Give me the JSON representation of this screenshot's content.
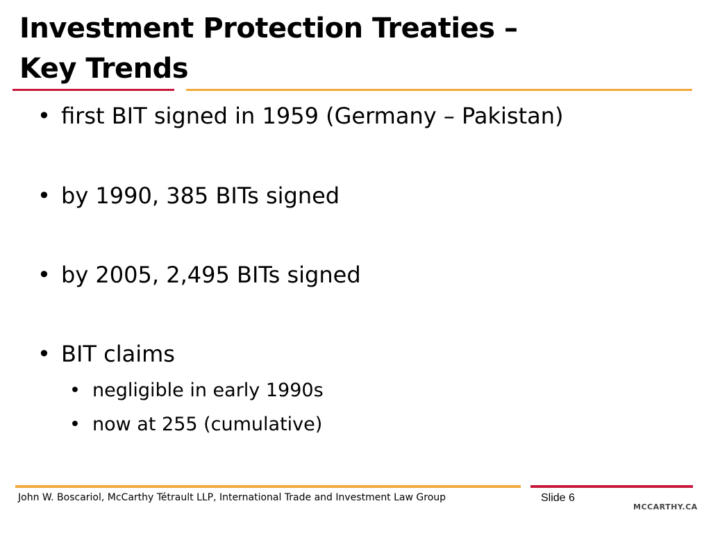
{
  "title": {
    "line1": "Investment Protection Treaties –",
    "line2": "Key Trends"
  },
  "bullets": [
    {
      "text": "first BIT signed in 1959 (Germany – Pakistan)"
    },
    {
      "text": "by 1990, 385 BITs signed"
    },
    {
      "text": "by 2005, 2,495 BITs signed"
    },
    {
      "text": "BIT claims",
      "sub": [
        {
          "text": "negligible in early 1990s"
        },
        {
          "text": "now at 255 (cumulative)"
        }
      ]
    }
  ],
  "bullet_symbol": "•",
  "footer": {
    "text": "John W. Boscariol, McCarthy Tétrault LLP, International Trade and Investment Law Group",
    "slide_number": "Slide 6",
    "logo": "MCCARTHY.CA"
  },
  "colors": {
    "accent_red": "#c8193c",
    "accent_orange": "#f2a93b"
  }
}
